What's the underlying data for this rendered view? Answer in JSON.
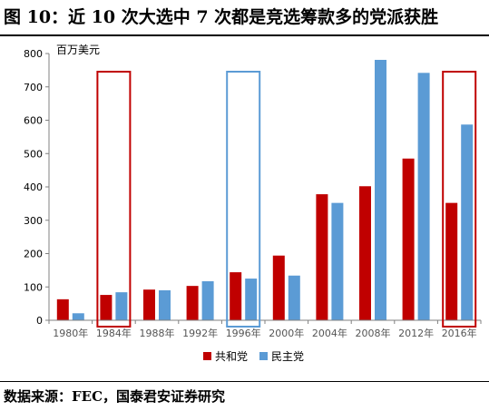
{
  "header": {
    "title": "图 10：近 10 次大选中 7 次都是竞选筹款多的党派获胜"
  },
  "footer": {
    "source": "数据来源：FEC，国泰君安证券研究"
  },
  "chart_data": {
    "type": "bar",
    "unit_label": "百万美元",
    "categories": [
      "1980年",
      "1984年",
      "1988年",
      "1992年",
      "1996年",
      "2000年",
      "2004年",
      "2008年",
      "2012年",
      "2016年"
    ],
    "series": [
      {
        "name": "共和党",
        "color": "#C00000",
        "values": [
          63,
          76,
          92,
          103,
          144,
          194,
          378,
          402,
          485,
          352
        ]
      },
      {
        "name": "民主党",
        "color": "#5B9BD5",
        "values": [
          21,
          84,
          90,
          117,
          125,
          134,
          352,
          781,
          742,
          587
        ]
      }
    ],
    "ylim": [
      0,
      800
    ],
    "yticks": [
      0,
      100,
      200,
      300,
      400,
      500,
      600,
      700,
      800
    ],
    "legend_position": "bottom",
    "grid": false,
    "highlights": [
      {
        "category": "1984年",
        "color": "#C00000"
      },
      {
        "category": "1996年",
        "color": "#5B9BD5"
      },
      {
        "category": "2016年",
        "color": "#C00000"
      }
    ]
  }
}
